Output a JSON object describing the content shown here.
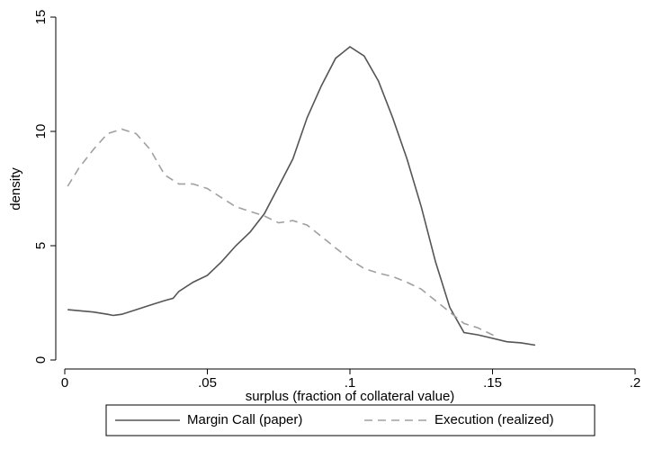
{
  "chart_data": {
    "type": "line",
    "xlabel": "surplus (fraction of collateral value)",
    "ylabel": "density",
    "xlim": [
      0,
      0.2
    ],
    "xticks": [
      0,
      {
        "value": 0.05,
        "label": ".05"
      },
      {
        "value": 0.1,
        "label": ".1"
      },
      {
        "value": 0.15,
        "label": ".15"
      },
      {
        "value": 0.2,
        "label": ".2"
      }
    ],
    "ylim": [
      0,
      15
    ],
    "yticks": [
      0,
      5,
      10,
      15
    ],
    "legend": "bottom",
    "series": [
      {
        "name": "Margin Call (paper)",
        "color": "#555555",
        "line_style": "solid",
        "x": [
          0.001,
          0.01,
          0.015,
          0.017,
          0.02,
          0.025,
          0.03,
          0.035,
          0.038,
          0.04,
          0.045,
          0.05,
          0.055,
          0.06,
          0.065,
          0.07,
          0.075,
          0.08,
          0.085,
          0.09,
          0.095,
          0.1,
          0.105,
          0.11,
          0.115,
          0.12,
          0.125,
          0.13,
          0.135,
          0.14,
          0.145,
          0.15,
          0.155,
          0.16,
          0.165
        ],
        "values": [
          2.2,
          2.1,
          2.0,
          1.95,
          2.0,
          2.2,
          2.4,
          2.6,
          2.7,
          3.0,
          3.4,
          3.7,
          4.3,
          5.0,
          5.6,
          6.4,
          7.6,
          8.8,
          10.6,
          12.0,
          13.2,
          13.7,
          13.3,
          12.2,
          10.6,
          8.8,
          6.7,
          4.3,
          2.3,
          1.2,
          1.1,
          0.95,
          0.8,
          0.75,
          0.65
        ]
      },
      {
        "name": "Execution (realized)",
        "color": "#a0a0a0",
        "line_style": "dashed",
        "x": [
          0.001,
          0.005,
          0.01,
          0.015,
          0.02,
          0.025,
          0.03,
          0.035,
          0.04,
          0.045,
          0.05,
          0.055,
          0.06,
          0.065,
          0.07,
          0.075,
          0.08,
          0.085,
          0.09,
          0.095,
          0.1,
          0.105,
          0.11,
          0.115,
          0.12,
          0.125,
          0.13,
          0.135,
          0.14,
          0.145,
          0.15,
          0.152
        ],
        "values": [
          7.6,
          8.4,
          9.2,
          9.9,
          10.1,
          9.9,
          9.2,
          8.1,
          7.7,
          7.7,
          7.5,
          7.1,
          6.7,
          6.5,
          6.3,
          6.0,
          6.1,
          5.9,
          5.4,
          4.9,
          4.4,
          4.0,
          3.8,
          3.65,
          3.4,
          3.1,
          2.6,
          2.1,
          1.6,
          1.4,
          1.1,
          1.0
        ]
      }
    ]
  }
}
